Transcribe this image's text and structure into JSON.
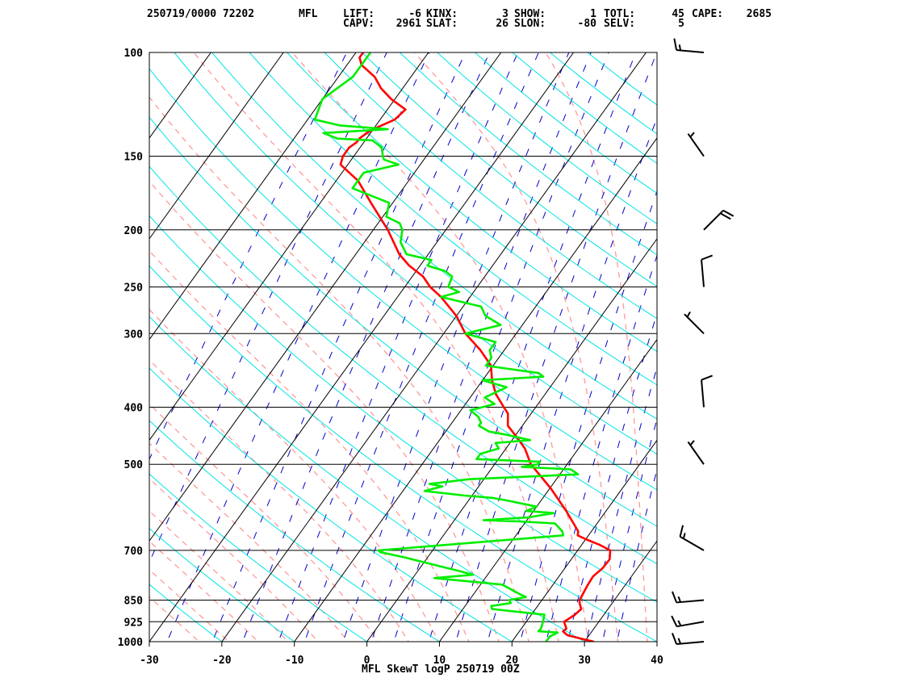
{
  "header": {
    "datetime_station": "250719/0000 72202",
    "station_id": "MFL",
    "row1": [
      {
        "label": "LIFT:",
        "value": "-6"
      },
      {
        "label": "KINX:",
        "value": "3"
      },
      {
        "label": "SHOW:",
        "value": "1"
      },
      {
        "label": "TOTL:",
        "value": "45"
      },
      {
        "label": "CAPE:",
        "value": "2685"
      }
    ],
    "row2": [
      {
        "label": "CAPV:",
        "value": "2961"
      },
      {
        "label": "SLAT:",
        "value": "26"
      },
      {
        "label": "SLON:",
        "value": "-80"
      },
      {
        "label": "SELV:",
        "value": "5"
      }
    ]
  },
  "caption": "MFL SkewT logP 250719 00Z",
  "chart_data": {
    "type": "line",
    "subtype": "skew-t log-p",
    "x_axis": {
      "ticks": [
        -30,
        -20,
        -10,
        0,
        10,
        20,
        30,
        40
      ],
      "range": [
        -30,
        40
      ]
    },
    "y_axis": {
      "pressure_ticks": [
        100,
        150,
        200,
        250,
        300,
        400,
        500,
        700,
        850,
        925,
        1000
      ],
      "range": [
        100,
        1000
      ],
      "scale": "log"
    },
    "colors": {
      "temperature": "#ff0000",
      "dewpoint": "#00ee00",
      "dry_adiabat": "#00e5e5",
      "moist_adiabat": "#ff9999",
      "mixing_ratio": "#0000cc",
      "isotherm": "#000000",
      "isobar": "#000000"
    },
    "series": [
      {
        "role": "temperature",
        "points": [
          [
            1000,
            31.3
          ],
          [
            990,
            29.5
          ],
          [
            975,
            27
          ],
          [
            960,
            26
          ],
          [
            950,
            26.2
          ],
          [
            925,
            25.2
          ],
          [
            900,
            26
          ],
          [
            880,
            26.3
          ],
          [
            860,
            25.5
          ],
          [
            850,
            25.2
          ],
          [
            800,
            24.8
          ],
          [
            775,
            24.7
          ],
          [
            750,
            25.2
          ],
          [
            725,
            25.3
          ],
          [
            700,
            24.5
          ],
          [
            685,
            22.5
          ],
          [
            670,
            20
          ],
          [
            660,
            18.5
          ],
          [
            650,
            18.2
          ],
          [
            600,
            14.5
          ],
          [
            550,
            10.2
          ],
          [
            500,
            5
          ],
          [
            470,
            2.6
          ],
          [
            450,
            0.4
          ],
          [
            430,
            -2
          ],
          [
            410,
            -3.2
          ],
          [
            400,
            -4.4
          ],
          [
            380,
            -6.8
          ],
          [
            360,
            -8.7
          ],
          [
            340,
            -10.3
          ],
          [
            320,
            -13.3
          ],
          [
            300,
            -17
          ],
          [
            280,
            -20
          ],
          [
            260,
            -24
          ],
          [
            250,
            -26.5
          ],
          [
            240,
            -28.5
          ],
          [
            230,
            -31.5
          ],
          [
            220,
            -34
          ],
          [
            200,
            -38
          ],
          [
            180,
            -43
          ],
          [
            165,
            -47
          ],
          [
            155,
            -51
          ],
          [
            150,
            -51.5
          ],
          [
            145,
            -51.5
          ],
          [
            142,
            -51
          ],
          [
            140,
            -51
          ],
          [
            137,
            -50.5
          ],
          [
            135,
            -50
          ],
          [
            130,
            -48
          ],
          [
            125,
            -47.5
          ],
          [
            120,
            -50.5
          ],
          [
            115,
            -53
          ],
          [
            110,
            -55
          ],
          [
            105,
            -58
          ],
          [
            102,
            -59
          ],
          [
            100,
            -59
          ]
        ]
      },
      {
        "role": "dewpoint",
        "points": [
          [
            1000,
            24.7
          ],
          [
            980,
            24.7
          ],
          [
            965,
            25.4
          ],
          [
            960,
            22.6
          ],
          [
            950,
            22.7
          ],
          [
            925,
            22.3
          ],
          [
            900,
            21.8
          ],
          [
            880,
            14
          ],
          [
            870,
            13.6
          ],
          [
            860,
            16
          ],
          [
            850,
            15.5
          ],
          [
            840,
            17.5
          ],
          [
            830,
            16.3
          ],
          [
            800,
            13
          ],
          [
            780,
            3
          ],
          [
            770,
            8
          ],
          [
            760,
            6
          ],
          [
            740,
            1.5
          ],
          [
            720,
            -3
          ],
          [
            705,
            -7
          ],
          [
            700,
            -7.5
          ],
          [
            660,
            16.5
          ],
          [
            650,
            16
          ],
          [
            630,
            14.2
          ],
          [
            625,
            9
          ],
          [
            622,
            4
          ],
          [
            615,
            10
          ],
          [
            605,
            13
          ],
          [
            600,
            9
          ],
          [
            590,
            10
          ],
          [
            575,
            5
          ],
          [
            570,
            3
          ],
          [
            565,
            -1
          ],
          [
            555,
            -7
          ],
          [
            545,
            -5
          ],
          [
            540,
            -7
          ],
          [
            530,
            -2
          ],
          [
            520,
            12.5
          ],
          [
            510,
            11
          ],
          [
            505,
            4
          ],
          [
            500,
            6
          ],
          [
            495,
            6
          ],
          [
            490,
            -3
          ],
          [
            480,
            -3
          ],
          [
            470,
            -1
          ],
          [
            460,
            -2
          ],
          [
            455,
            2.5
          ],
          [
            445,
            -1.5
          ],
          [
            440,
            -4
          ],
          [
            430,
            -6
          ],
          [
            425,
            -6
          ],
          [
            415,
            -7
          ],
          [
            405,
            -8.7
          ],
          [
            395,
            -6
          ],
          [
            385,
            -8
          ],
          [
            370,
            -6
          ],
          [
            360,
            -10
          ],
          [
            355,
            -2
          ],
          [
            350,
            -3
          ],
          [
            345,
            -7
          ],
          [
            340,
            -11
          ],
          [
            330,
            -11
          ],
          [
            320,
            -12
          ],
          [
            310,
            -12
          ],
          [
            300,
            -17
          ],
          [
            290,
            -13
          ],
          [
            280,
            -16
          ],
          [
            270,
            -17.5
          ],
          [
            260,
            -24
          ],
          [
            255,
            -22
          ],
          [
            250,
            -24
          ],
          [
            240,
            -24.5
          ],
          [
            235,
            -26
          ],
          [
            230,
            -29
          ],
          [
            225,
            -29
          ],
          [
            220,
            -33
          ],
          [
            210,
            -35
          ],
          [
            200,
            -36
          ],
          [
            195,
            -37
          ],
          [
            190,
            -39.5
          ],
          [
            180,
            -40.5
          ],
          [
            170,
            -47
          ],
          [
            160,
            -47
          ],
          [
            155,
            -43
          ],
          [
            152,
            -45.5
          ],
          [
            150,
            -46
          ],
          [
            145,
            -47
          ],
          [
            141,
            -49
          ],
          [
            140,
            -54
          ],
          [
            137,
            -56.5
          ],
          [
            135,
            -48
          ],
          [
            133,
            -55
          ],
          [
            130,
            -59
          ],
          [
            120,
            -60
          ],
          [
            110,
            -58
          ],
          [
            100,
            -58
          ]
        ]
      }
    ],
    "wind_barbs": [
      {
        "pressure": 1000,
        "direction": 265,
        "speed_kt": 15
      },
      {
        "pressure": 925,
        "direction": 260,
        "speed_kt": 15
      },
      {
        "pressure": 850,
        "direction": 265,
        "speed_kt": 15
      },
      {
        "pressure": 700,
        "direction": 300,
        "speed_kt": 15
      },
      {
        "pressure": 500,
        "direction": 325,
        "speed_kt": 5
      },
      {
        "pressure": 400,
        "direction": 355,
        "speed_kt": 10
      },
      {
        "pressure": 300,
        "direction": 315,
        "speed_kt": 5
      },
      {
        "pressure": 250,
        "direction": 355,
        "speed_kt": 10
      },
      {
        "pressure": 200,
        "direction": 45,
        "speed_kt": 20
      },
      {
        "pressure": 150,
        "direction": 325,
        "speed_kt": 5
      },
      {
        "pressure": 100,
        "direction": 275,
        "speed_kt": 15
      }
    ]
  }
}
